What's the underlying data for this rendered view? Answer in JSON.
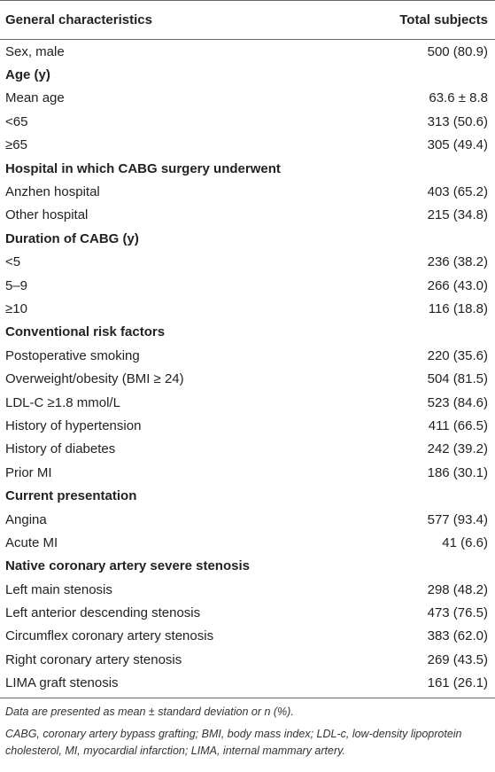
{
  "table": {
    "header": [
      "General characteristics",
      "Total subjects"
    ],
    "rows": [
      {
        "label": "Sex, male",
        "value": "500 (80.9)"
      },
      {
        "section": "Age (y)"
      },
      {
        "label": "Mean age",
        "value": "63.6 ± 8.8"
      },
      {
        "label": "<65",
        "value": "313 (50.6)"
      },
      {
        "label": "≥65",
        "value": "305 (49.4)"
      },
      {
        "section": "Hospital in which CABG surgery underwent"
      },
      {
        "label": "Anzhen hospital",
        "value": "403 (65.2)"
      },
      {
        "label": "Other hospital",
        "value": "215 (34.8)"
      },
      {
        "section": "Duration of CABG (y)"
      },
      {
        "label": "<5",
        "value": "236 (38.2)"
      },
      {
        "label": "5–9",
        "value": "266 (43.0)"
      },
      {
        "label": "≥10",
        "value": "116 (18.8)"
      },
      {
        "section": "Conventional risk factors"
      },
      {
        "label": "Postoperative smoking",
        "value": "220 (35.6)"
      },
      {
        "label": "Overweight/obesity (BMI ≥ 24)",
        "value": "504 (81.5)"
      },
      {
        "label": "LDL-C ≥1.8 mmol/L",
        "value": "523 (84.6)"
      },
      {
        "label": "History of hypertension",
        "value": "411 (66.5)"
      },
      {
        "label": "History of diabetes",
        "value": "242 (39.2)"
      },
      {
        "label": "Prior MI",
        "value": "186 (30.1)"
      },
      {
        "section": "Current presentation"
      },
      {
        "label": "Angina",
        "value": "577 (93.4)"
      },
      {
        "label": "Acute MI",
        "value": "41 (6.6)"
      },
      {
        "section": "Native coronary artery severe stenosis"
      },
      {
        "label": "Left main stenosis",
        "value": "298 (48.2)"
      },
      {
        "label": "Left anterior descending stenosis",
        "value": "473 (76.5)"
      },
      {
        "label": "Circumflex coronary artery stenosis",
        "value": "383 (62.0)"
      },
      {
        "label": "Right coronary artery stenosis",
        "value": "269 (43.5)"
      },
      {
        "label": "LIMA graft stenosis",
        "value": "161 (26.1)"
      }
    ],
    "footnotes": [
      "Data are presented as mean ± standard deviation or n (%).",
      "CABG, coronary artery bypass grafting; BMI, body mass index; LDL-c, low-density lipoprotein cholesterol, MI, myocardial infarction; LIMA, internal mammary artery."
    ]
  }
}
